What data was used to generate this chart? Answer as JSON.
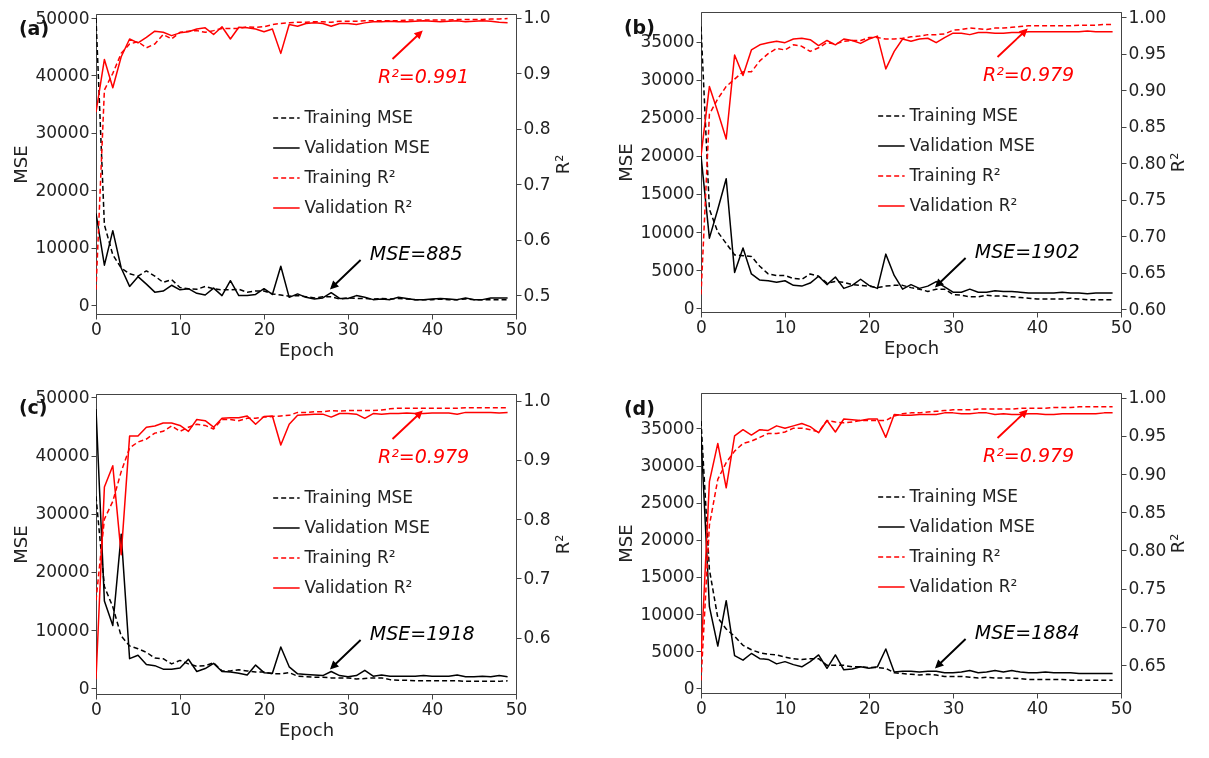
{
  "chart_data": [
    {
      "type": "line",
      "title": "(a)",
      "xlabel": "Epoch",
      "ylabel": "MSE",
      "y2label": "R²",
      "legend": "right",
      "x": [
        0,
        1,
        2,
        3,
        4,
        5,
        6,
        7,
        8,
        9,
        10,
        11,
        12,
        13,
        14,
        15,
        16,
        17,
        18,
        19,
        20,
        21,
        22,
        23,
        24,
        25,
        26,
        27,
        28,
        29,
        30,
        31,
        32,
        33,
        34,
        35,
        36,
        37,
        38,
        39,
        40,
        41,
        42,
        43,
        44,
        45,
        46,
        47,
        48,
        49
      ],
      "xlim": [
        0,
        50
      ],
      "xticks": [
        0,
        10,
        20,
        30,
        40,
        50
      ],
      "ylim": [
        -1500,
        50700
      ],
      "yticks": [
        0,
        10000,
        20000,
        30000,
        40000,
        50000
      ],
      "y2lim": [
        0.466,
        1.007
      ],
      "y2ticks": [
        0.5,
        0.6,
        0.7,
        0.8,
        0.9,
        {
          "value": 1,
          "label": "1.0"
        }
      ],
      "series": [
        {
          "name": "Training MSE",
          "color": "#000000",
          "line_style": "dashed",
          "values": [
            50000,
            14000,
            8800,
            6500,
            5500,
            5100,
            6000,
            5100,
            4000,
            4500,
            3100,
            2900,
            2800,
            3300,
            2900,
            2700,
            2700,
            2800,
            2300,
            2500,
            2500,
            2000,
            1800,
            1600,
            1700,
            1500,
            1300,
            1500,
            1500,
            1100,
            1300,
            1200,
            1200,
            1100,
            1200,
            1100,
            1200,
            1100,
            1000,
            1000,
            1000,
            1100,
            1000,
            1000,
            1100,
            1000,
            1000,
            1000,
            1000,
            1000
          ]
        },
        {
          "name": "Validation MSE",
          "color": "#000000",
          "line_style": "solid",
          "values": [
            16000,
            7000,
            13000,
            6500,
            3300,
            5000,
            3700,
            2300,
            2500,
            3500,
            2700,
            2900,
            2100,
            1800,
            3000,
            1700,
            4300,
            1700,
            1700,
            1900,
            2900,
            1900,
            6800,
            1400,
            2000,
            1400,
            1100,
            1300,
            2200,
            1200,
            1200,
            1700,
            1400,
            1000,
            1100,
            1000,
            1400,
            1200,
            1000,
            1000,
            1100,
            1200,
            1100,
            1000,
            1300,
            1000,
            1000,
            1300,
            1300,
            1300
          ]
        },
        {
          "name": "Training R²",
          "color": "#ff0000",
          "line_style": "dashed",
          "axis": "y2",
          "values": [
            0.51,
            0.87,
            0.9,
            0.936,
            0.953,
            0.957,
            0.946,
            0.953,
            0.97,
            0.962,
            0.974,
            0.976,
            0.977,
            0.974,
            0.977,
            0.981,
            0.981,
            0.981,
            0.984,
            0.983,
            0.984,
            0.988,
            0.99,
            0.991,
            0.992,
            0.992,
            0.993,
            0.993,
            0.992,
            0.994,
            0.994,
            0.994,
            0.995,
            0.995,
            0.995,
            0.995,
            0.995,
            0.996,
            0.996,
            0.996,
            0.996,
            0.996,
            0.996,
            0.997,
            0.997,
            0.997,
            0.997,
            0.998,
            0.998,
            0.999
          ]
        },
        {
          "name": "Validation R²",
          "color": "#ff0000",
          "line_style": "solid",
          "axis": "y2",
          "values": [
            0.83,
            0.925,
            0.874,
            0.93,
            0.962,
            0.955,
            0.965,
            0.976,
            0.974,
            0.968,
            0.973,
            0.975,
            0.98,
            0.982,
            0.97,
            0.984,
            0.962,
            0.983,
            0.982,
            0.98,
            0.975,
            0.98,
            0.936,
            0.988,
            0.985,
            0.99,
            0.991,
            0.99,
            0.985,
            0.99,
            0.99,
            0.988,
            0.991,
            0.993,
            0.993,
            0.994,
            0.993,
            0.993,
            0.994,
            0.995,
            0.994,
            0.993,
            0.994,
            0.995,
            0.993,
            0.994,
            0.995,
            0.994,
            0.992,
            0.991
          ]
        }
      ],
      "annotations": [
        "R²=0.991",
        "MSE=885"
      ]
    },
    {
      "type": "line",
      "title": "(b)",
      "xlabel": "Epoch",
      "ylabel": "MSE",
      "y2label": "R²",
      "legend": "right",
      "x": [
        0,
        1,
        2,
        3,
        4,
        5,
        6,
        7,
        8,
        9,
        10,
        11,
        12,
        13,
        14,
        15,
        16,
        17,
        18,
        19,
        20,
        21,
        22,
        23,
        24,
        25,
        26,
        27,
        28,
        29,
        30,
        31,
        32,
        33,
        34,
        35,
        36,
        37,
        38,
        39,
        40,
        41,
        42,
        43,
        44,
        45,
        46,
        47,
        48,
        49
      ],
      "xlim": [
        0,
        50
      ],
      "xticks": [
        0,
        10,
        20,
        30,
        40,
        50
      ],
      "ylim": [
        -500,
        38900
      ],
      "yticks": [
        0,
        5000,
        10000,
        15000,
        20000,
        25000,
        30000,
        35000
      ],
      "y2lim": [
        0.596,
        1.007
      ],
      "y2ticks": [
        {
          "value": 0.6,
          "label": "0.60"
        },
        {
          "value": 0.65,
          "label": "0.65"
        },
        {
          "value": 0.7,
          "label": "0.70"
        },
        {
          "value": 0.75,
          "label": "0.75"
        },
        {
          "value": 0.8,
          "label": "0.80"
        },
        {
          "value": 0.85,
          "label": "0.85"
        },
        {
          "value": 0.9,
          "label": "0.90"
        },
        {
          "value": 0.95,
          "label": "0.95"
        },
        {
          "value": 1,
          "label": "1.00"
        }
      ],
      "series": [
        {
          "name": "Training MSE",
          "color": "#000000",
          "line_style": "dashed",
          "values": [
            37000,
            13000,
            10000,
            8500,
            7000,
            6900,
            6800,
            5500,
            4500,
            4300,
            4300,
            3900,
            3800,
            4500,
            4200,
            3300,
            3500,
            3400,
            3100,
            3000,
            2900,
            2700,
            2900,
            3000,
            3000,
            2700,
            2500,
            2200,
            2500,
            2500,
            1800,
            1700,
            1500,
            1500,
            1700,
            1600,
            1600,
            1500,
            1400,
            1300,
            1200,
            1200,
            1200,
            1200,
            1300,
            1200,
            1100,
            1100,
            1100,
            1100
          ]
        },
        {
          "name": "Validation MSE",
          "color": "#000000",
          "line_style": "solid",
          "values": [
            20000,
            9200,
            13000,
            17000,
            4700,
            7900,
            4500,
            3700,
            3600,
            3400,
            3600,
            3000,
            2900,
            3300,
            4200,
            3100,
            4100,
            2600,
            3000,
            3800,
            3000,
            2600,
            7100,
            4300,
            2500,
            3100,
            2600,
            2900,
            3500,
            2800,
            2100,
            2100,
            2500,
            2100,
            2100,
            2300,
            2200,
            2200,
            2100,
            2000,
            2000,
            2000,
            2000,
            2100,
            2000,
            2000,
            1900,
            2000,
            2000,
            2000
          ]
        },
        {
          "name": "Training R²",
          "color": "#ff0000",
          "line_style": "dashed",
          "axis": "y2",
          "values": [
            0.62,
            0.867,
            0.888,
            0.905,
            0.915,
            0.925,
            0.925,
            0.94,
            0.95,
            0.957,
            0.955,
            0.962,
            0.96,
            0.953,
            0.958,
            0.965,
            0.963,
            0.967,
            0.968,
            0.968,
            0.972,
            0.972,
            0.97,
            0.97,
            0.971,
            0.973,
            0.974,
            0.976,
            0.976,
            0.977,
            0.982,
            0.983,
            0.985,
            0.984,
            0.983,
            0.985,
            0.985,
            0.986,
            0.987,
            0.988,
            0.988,
            0.988,
            0.988,
            0.988,
            0.988,
            0.989,
            0.989,
            0.989,
            0.99,
            0.99
          ]
        },
        {
          "name": "Validation R²",
          "color": "#ff0000",
          "line_style": "solid",
          "axis": "y2",
          "values": [
            0.81,
            0.905,
            0.87,
            0.833,
            0.948,
            0.92,
            0.955,
            0.962,
            0.965,
            0.967,
            0.965,
            0.97,
            0.971,
            0.969,
            0.961,
            0.968,
            0.962,
            0.97,
            0.968,
            0.964,
            0.97,
            0.974,
            0.929,
            0.953,
            0.97,
            0.967,
            0.97,
            0.971,
            0.965,
            0.972,
            0.978,
            0.978,
            0.976,
            0.979,
            0.979,
            0.978,
            0.978,
            0.979,
            0.979,
            0.98,
            0.98,
            0.98,
            0.98,
            0.98,
            0.98,
            0.98,
            0.981,
            0.98,
            0.98,
            0.98
          ]
        }
      ],
      "annotations": [
        "R²=0.979",
        "MSE=1902"
      ]
    },
    {
      "type": "line",
      "title": "(c)",
      "xlabel": "Epoch",
      "ylabel": "MSE",
      "y2label": "R²",
      "legend": "right",
      "x": [
        0,
        1,
        2,
        3,
        4,
        5,
        6,
        7,
        8,
        9,
        10,
        11,
        12,
        13,
        14,
        15,
        16,
        17,
        18,
        19,
        20,
        21,
        22,
        23,
        24,
        25,
        26,
        27,
        28,
        29,
        30,
        31,
        32,
        33,
        34,
        35,
        36,
        37,
        38,
        39,
        40,
        41,
        42,
        43,
        44,
        45,
        46,
        47,
        48,
        49
      ],
      "xlim": [
        0,
        50
      ],
      "xticks": [
        0,
        10,
        20,
        30,
        40,
        50
      ],
      "ylim": [
        -970,
        50590
      ],
      "yticks": [
        0,
        10000,
        20000,
        30000,
        40000,
        50000
      ],
      "y2lim": [
        0.505,
        1.011
      ],
      "y2ticks": [
        0.6,
        0.7,
        0.8,
        0.9,
        {
          "value": 1,
          "label": "1.0"
        }
      ],
      "series": [
        {
          "name": "Training MSE",
          "color": "#000000",
          "line_style": "dashed",
          "values": [
            33000,
            17500,
            14000,
            9000,
            7300,
            6800,
            6200,
            5200,
            5100,
            4200,
            4800,
            4200,
            3800,
            3900,
            4400,
            3000,
            3000,
            3200,
            3000,
            2800,
            2800,
            2500,
            2500,
            2700,
            2100,
            2000,
            1900,
            1900,
            1800,
            1800,
            1800,
            1600,
            1700,
            1800,
            1800,
            1500,
            1400,
            1400,
            1300,
            1300,
            1300,
            1300,
            1300,
            1300,
            1200,
            1200,
            1200,
            1200,
            1200,
            1300
          ]
        },
        {
          "name": "Validation MSE",
          "color": "#000000",
          "line_style": "solid",
          "values": [
            48000,
            15000,
            10800,
            26500,
            5100,
            5700,
            4100,
            3900,
            3300,
            3300,
            3500,
            5000,
            2900,
            3400,
            4300,
            2900,
            2800,
            2600,
            2300,
            4000,
            2700,
            2600,
            7100,
            3700,
            2500,
            2400,
            2300,
            2200,
            2900,
            2200,
            2000,
            2200,
            3100,
            2100,
            2300,
            2100,
            2100,
            2100,
            2100,
            2200,
            2100,
            2100,
            2100,
            2300,
            2000,
            2000,
            2100,
            2000,
            2200,
            2000
          ]
        },
        {
          "name": "Training R²",
          "color": "#ff0000",
          "line_style": "dashed",
          "axis": "y2",
          "values": [
            0.663,
            0.8,
            0.83,
            0.88,
            0.92,
            0.93,
            0.935,
            0.945,
            0.948,
            0.957,
            0.948,
            0.955,
            0.96,
            0.958,
            0.952,
            0.968,
            0.968,
            0.966,
            0.97,
            0.97,
            0.972,
            0.973,
            0.974,
            0.975,
            0.98,
            0.98,
            0.981,
            0.981,
            0.983,
            0.982,
            0.983,
            0.983,
            0.983,
            0.983,
            0.984,
            0.986,
            0.987,
            0.987,
            0.987,
            0.987,
            0.987,
            0.987,
            0.987,
            0.987,
            0.988,
            0.988,
            0.988,
            0.988,
            0.988,
            0.988
          ]
        },
        {
          "name": "Validation R²",
          "color": "#ff0000",
          "line_style": "solid",
          "axis": "y2",
          "values": [
            0.53,
            0.854,
            0.89,
            0.74,
            0.94,
            0.94,
            0.955,
            0.957,
            0.962,
            0.962,
            0.958,
            0.948,
            0.968,
            0.966,
            0.955,
            0.97,
            0.971,
            0.971,
            0.974,
            0.96,
            0.973,
            0.974,
            0.925,
            0.96,
            0.975,
            0.976,
            0.977,
            0.977,
            0.972,
            0.978,
            0.978,
            0.977,
            0.97,
            0.978,
            0.977,
            0.978,
            0.978,
            0.979,
            0.978,
            0.978,
            0.979,
            0.979,
            0.979,
            0.977,
            0.98,
            0.98,
            0.98,
            0.98,
            0.979,
            0.98
          ]
        }
      ],
      "annotations": [
        "R²=0.979",
        "MSE=1918"
      ]
    },
    {
      "type": "line",
      "title": "(d)",
      "xlabel": "Epoch",
      "ylabel": "MSE",
      "y2label": "R²",
      "legend": "right",
      "x": [
        0,
        1,
        2,
        3,
        4,
        5,
        6,
        7,
        8,
        9,
        10,
        11,
        12,
        13,
        14,
        15,
        16,
        17,
        18,
        19,
        20,
        21,
        22,
        23,
        24,
        25,
        26,
        27,
        28,
        29,
        30,
        31,
        32,
        33,
        34,
        35,
        36,
        37,
        38,
        39,
        40,
        41,
        42,
        43,
        44,
        45,
        46,
        47,
        48,
        49
      ],
      "xlim": [
        0,
        50
      ],
      "xticks": [
        0,
        10,
        20,
        30,
        40,
        50
      ],
      "ylim": [
        -620,
        39760
      ],
      "yticks": [
        0,
        5000,
        10000,
        15000,
        20000,
        25000,
        30000,
        35000
      ],
      "y2lim": [
        0.6135,
        1.006
      ],
      "y2ticks": [
        {
          "value": 0.65,
          "label": "0.65"
        },
        {
          "value": 0.7,
          "label": "0.70"
        },
        {
          "value": 0.75,
          "label": "0.75"
        },
        {
          "value": 0.8,
          "label": "0.80"
        },
        {
          "value": 0.85,
          "label": "0.85"
        },
        {
          "value": 0.9,
          "label": "0.90"
        },
        {
          "value": 0.95,
          "label": "0.95"
        },
        {
          "value": 1,
          "label": "1.00"
        }
      ],
      "series": [
        {
          "name": "Training MSE",
          "color": "#000000",
          "line_style": "dashed",
          "values": [
            36000,
            16000,
            9500,
            8000,
            7000,
            5800,
            5200,
            4800,
            4600,
            4500,
            4200,
            4000,
            3900,
            4000,
            4000,
            3100,
            3100,
            3100,
            2900,
            2900,
            2800,
            2800,
            2700,
            2100,
            2000,
            1900,
            1800,
            1900,
            1800,
            1600,
            1600,
            1600,
            1500,
            1400,
            1500,
            1400,
            1400,
            1400,
            1300,
            1200,
            1200,
            1200,
            1200,
            1200,
            1100,
            1100,
            1100,
            1100,
            1100,
            1100
          ]
        },
        {
          "name": "Validation MSE",
          "color": "#000000",
          "line_style": "solid",
          "values": [
            34000,
            11000,
            5700,
            11800,
            4400,
            3800,
            4700,
            4000,
            3900,
            3300,
            3600,
            3200,
            2900,
            3600,
            4500,
            2700,
            4500,
            2500,
            2600,
            2900,
            2700,
            2900,
            5300,
            2200,
            2300,
            2300,
            2200,
            2300,
            2300,
            2100,
            2100,
            2200,
            2400,
            2100,
            2200,
            2400,
            2200,
            2400,
            2200,
            2100,
            2100,
            2200,
            2100,
            2100,
            2100,
            2000,
            2000,
            2000,
            2000,
            2000
          ]
        },
        {
          "name": "Training R²",
          "color": "#ff0000",
          "line_style": "dashed",
          "axis": "y2",
          "values": [
            0.63,
            0.833,
            0.893,
            0.915,
            0.93,
            0.94,
            0.943,
            0.948,
            0.953,
            0.953,
            0.955,
            0.96,
            0.96,
            0.958,
            0.955,
            0.97,
            0.968,
            0.967,
            0.968,
            0.97,
            0.97,
            0.97,
            0.97,
            0.976,
            0.979,
            0.98,
            0.98,
            0.981,
            0.982,
            0.983,
            0.984,
            0.984,
            0.984,
            0.985,
            0.985,
            0.985,
            0.985,
            0.985,
            0.986,
            0.986,
            0.986,
            0.986,
            0.987,
            0.987,
            0.987,
            0.988,
            0.988,
            0.988,
            0.988,
            0.988
          ]
        },
        {
          "name": "Validation R²",
          "color": "#ff0000",
          "line_style": "solid",
          "axis": "y2",
          "values": [
            0.66,
            0.89,
            0.94,
            0.882,
            0.95,
            0.958,
            0.951,
            0.958,
            0.957,
            0.963,
            0.96,
            0.963,
            0.966,
            0.962,
            0.954,
            0.97,
            0.955,
            0.972,
            0.971,
            0.97,
            0.972,
            0.972,
            0.948,
            0.978,
            0.977,
            0.977,
            0.978,
            0.978,
            0.978,
            0.98,
            0.98,
            0.979,
            0.979,
            0.98,
            0.98,
            0.978,
            0.979,
            0.978,
            0.978,
            0.979,
            0.979,
            0.978,
            0.978,
            0.979,
            0.979,
            0.979,
            0.979,
            0.979,
            0.98,
            0.98
          ]
        }
      ],
      "annotations": [
        "R²=0.979",
        "MSE=1884"
      ]
    }
  ]
}
